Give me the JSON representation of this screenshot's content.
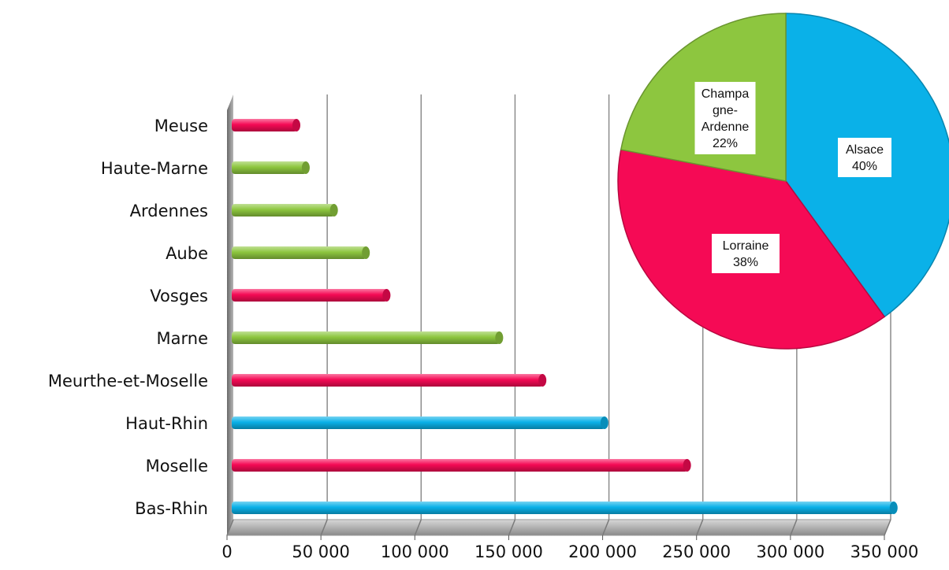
{
  "chart_data": [
    {
      "type": "bar",
      "orientation": "horizontal",
      "categories": [
        "Bas-Rhin",
        "Moselle",
        "Haut-Rhin",
        "Meurthe-et-Moselle",
        "Marne",
        "Vosges",
        "Aube",
        "Ardennes",
        "Haute-Marne",
        "Meuse"
      ],
      "values": [
        352000,
        242000,
        198000,
        165000,
        142000,
        82000,
        71000,
        54000,
        39000,
        34000
      ],
      "category_region": [
        "Alsace",
        "Lorraine",
        "Alsace",
        "Lorraine",
        "Champagne-Ardenne",
        "Lorraine",
        "Champagne-Ardenne",
        "Champagne-Ardenne",
        "Champagne-Ardenne",
        "Lorraine"
      ],
      "xlim": [
        0,
        350000
      ],
      "ticks": [
        0,
        50000,
        100000,
        150000,
        200000,
        250000,
        300000,
        350000
      ],
      "tick_labels": [
        "0",
        "50 000",
        "100 000",
        "150 000",
        "200 000",
        "250 000",
        "300 000",
        "350 000"
      ],
      "grid": true,
      "style": "3d"
    },
    {
      "type": "pie",
      "slices": [
        {
          "label": "Alsace",
          "value": 40,
          "display": "40%"
        },
        {
          "label": "Lorraine",
          "value": 38,
          "display": "38%"
        },
        {
          "label": "Champagne-Ardenne",
          "value": 22,
          "display": "22%"
        }
      ],
      "label_lines": {
        "Alsace": [
          "Alsace",
          "40%"
        ],
        "Lorraine": [
          "Lorraine",
          "38%"
        ],
        "Champagne-Ardenne": [
          "Champa",
          "gne-",
          "Ardenne",
          "22%"
        ]
      }
    }
  ],
  "colors": {
    "Alsace": "#0AB1E8",
    "Lorraine": "#F50A55",
    "Champagne-Ardenne": "#8DC63F"
  }
}
